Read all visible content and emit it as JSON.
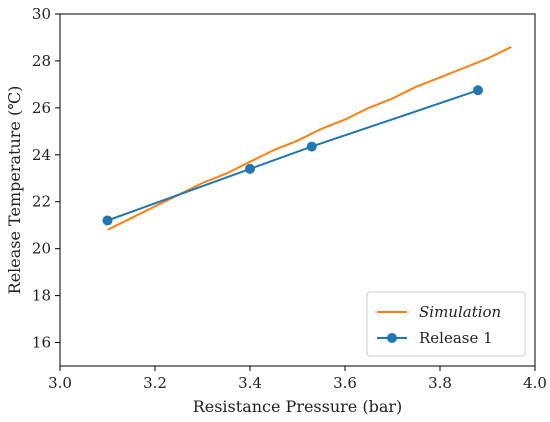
{
  "chart_data": {
    "type": "line",
    "xlabel": "Resistance Pressure (bar)",
    "ylabel": "Release Temperature (℃)",
    "xlim": [
      3.0,
      4.0
    ],
    "ylim": [
      15,
      30
    ],
    "xticks": [
      "3.0",
      "3.2",
      "3.4",
      "3.6",
      "3.8",
      "4.0"
    ],
    "xtick_values": [
      3.0,
      3.2,
      3.4,
      3.6,
      3.8,
      4.0
    ],
    "yticks": [
      "16",
      "18",
      "20",
      "22",
      "24",
      "26",
      "28",
      "30"
    ],
    "ytick_values": [
      16,
      18,
      20,
      22,
      24,
      26,
      28,
      30
    ],
    "grid": false,
    "legend_position": "bottom-right",
    "series": [
      {
        "name": "Simulation",
        "color": "#ff7f0e",
        "marker": "none",
        "x": [
          3.1,
          3.15,
          3.2,
          3.25,
          3.3,
          3.35,
          3.4,
          3.45,
          3.5,
          3.55,
          3.6,
          3.65,
          3.7,
          3.75,
          3.8,
          3.85,
          3.9,
          3.95
        ],
        "y": [
          20.8,
          21.3,
          21.8,
          22.3,
          22.8,
          23.2,
          23.7,
          24.2,
          24.6,
          25.1,
          25.5,
          26.0,
          26.4,
          26.9,
          27.3,
          27.7,
          28.1,
          28.6
        ]
      },
      {
        "name": "Release 1",
        "color": "#1f77b4",
        "marker": "circle",
        "x": [
          3.1,
          3.4,
          3.53,
          3.88
        ],
        "y": [
          21.2,
          23.4,
          24.35,
          26.75
        ]
      }
    ]
  }
}
